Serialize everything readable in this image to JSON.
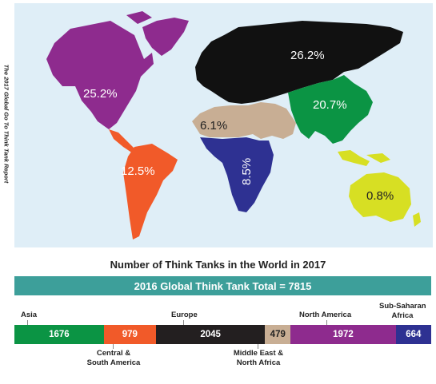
{
  "credit": "The 2017 Global Go To Think Tank Report",
  "map": {
    "regions": [
      {
        "id": "north-america",
        "label": "25.2%",
        "color": "#8e2b8e"
      },
      {
        "id": "central-south-america",
        "label": "12.5%",
        "color": "#f15a29"
      },
      {
        "id": "europe",
        "label": "26.2%",
        "color": "#111111"
      },
      {
        "id": "middle-east-north-africa",
        "label": "6.1%",
        "color": "#c8ae94"
      },
      {
        "id": "sub-saharan-africa",
        "label": "8.5%",
        "color": "#2e3192"
      },
      {
        "id": "asia",
        "label": "20.7%",
        "color": "#0b9444"
      },
      {
        "id": "oceania",
        "label": "0.8%",
        "color": "#d7df23"
      }
    ]
  },
  "chart_title": "Number of Think Tanks in the World in 2017",
  "total_banner": "2016 Global Think Tank Total = 7815",
  "chart_data": {
    "type": "bar",
    "title": "Number of Think Tanks in the World in 2017",
    "subtitle": "2016 Global Think Tank Total = 7815",
    "categories": [
      "Asia",
      "Central & South America",
      "Europe",
      "Middle East & North Africa",
      "North America",
      "Sub-Saharan Africa"
    ],
    "values": [
      1676,
      979,
      2045,
      479,
      1972,
      664
    ],
    "colors": [
      "#0b9444",
      "#f15a29",
      "#231f20",
      "#c8ae94",
      "#8e2b8e",
      "#2e3192"
    ],
    "total": 7815
  },
  "bar_labels": {
    "asia": "Asia",
    "central_south_america_1": "Central &",
    "central_south_america_2": "South America",
    "europe": "Europe",
    "mena_1": "Middle East &",
    "mena_2": "North Africa",
    "north_america": "North America",
    "ssa_1": "Sub-Saharan",
    "ssa_2": "Africa"
  }
}
